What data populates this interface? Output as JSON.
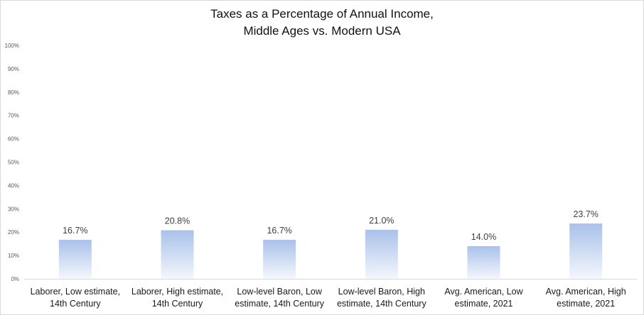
{
  "chart_data": {
    "type": "bar",
    "title_lines": [
      "Taxes as a Percentage of Annual Income,",
      "Middle Ages vs. Modern USA"
    ],
    "xlabel": "",
    "ylabel": "",
    "ylim": [
      0,
      100
    ],
    "y_ticks": [
      "0%",
      "10%",
      "20%",
      "30%",
      "40%",
      "50%",
      "60%",
      "70%",
      "80%",
      "90%",
      "100%"
    ],
    "categories": [
      [
        "Laborer, Low estimate,",
        "14th Century"
      ],
      [
        "Laborer, High estimate,",
        "14th Century"
      ],
      [
        "Low-level Baron, Low",
        "estimate, 14th Century"
      ],
      [
        "Low-level Baron, High",
        "estimate, 14th Century"
      ],
      [
        "Avg. American, Low",
        "estimate, 2021"
      ],
      [
        "Avg. American, High",
        "estimate, 2021"
      ]
    ],
    "values": [
      16.7,
      20.8,
      16.7,
      21.0,
      14.0,
      23.7
    ],
    "data_labels": [
      "16.7%",
      "20.8%",
      "16.7%",
      "21.0%",
      "14.0%",
      "23.7%"
    ],
    "grid": false,
    "legend": "none",
    "bar_color_top": "#a9c1ea",
    "bar_color_bottom": "#f4f7fc",
    "axis_color": "#d9d9d9"
  }
}
